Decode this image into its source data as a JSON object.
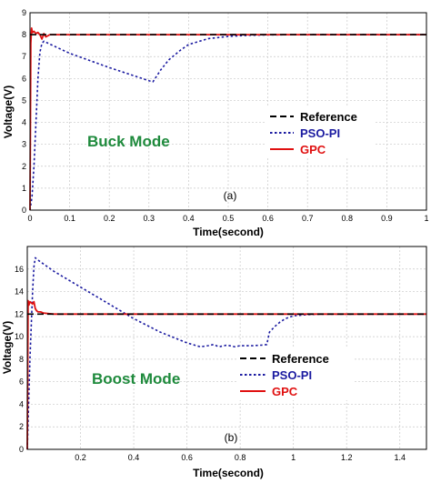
{
  "chart_data": [
    {
      "type": "line",
      "panel_label": "(a)",
      "annotation": "Buck Mode",
      "annotation_color": "#1e8a3c",
      "xlabel": "Time(second)",
      "ylabel": "Voltage(V)",
      "xlim": [
        0,
        1
      ],
      "ylim": [
        0,
        9
      ],
      "xticks": [
        0,
        0.1,
        0.2,
        0.3,
        0.4,
        0.5,
        0.6,
        0.7,
        0.8,
        0.9,
        1
      ],
      "xtick_labels": [
        "0",
        "0.1",
        "0.2",
        "0.3",
        "0.4",
        "0.5",
        "0.6",
        "0.7",
        "0.8",
        "0.9",
        "1"
      ],
      "yticks": [
        0,
        1,
        2,
        3,
        4,
        5,
        6,
        7,
        8,
        9
      ],
      "ytick_labels": [
        "0",
        "1",
        "2",
        "3",
        "4",
        "5",
        "6",
        "7",
        "8",
        "9"
      ],
      "grid": true,
      "legend_position": "right",
      "series": [
        {
          "name": "Reference",
          "color": "#000000",
          "style": "dashed",
          "x": [
            0,
            1
          ],
          "y": [
            8,
            8
          ]
        },
        {
          "name": "PSO-PI",
          "color": "#1a1aa0",
          "style": "dotted",
          "x": [
            0,
            0.005,
            0.01,
            0.015,
            0.02,
            0.025,
            0.03,
            0.035,
            0.05,
            0.1,
            0.2,
            0.3,
            0.31,
            0.33,
            0.35,
            0.38,
            0.4,
            0.45,
            0.5,
            0.55,
            0.6,
            0.7,
            0.8,
            1.0
          ],
          "y": [
            0,
            0.6,
            2.0,
            4.0,
            6.0,
            7.2,
            7.6,
            7.7,
            7.57,
            7.15,
            6.5,
            5.9,
            5.85,
            6.4,
            6.85,
            7.3,
            7.55,
            7.82,
            7.92,
            7.97,
            7.99,
            8.0,
            8.0,
            8.0
          ]
        },
        {
          "name": "GPC",
          "color": "#e01010",
          "style": "solid",
          "x": [
            0,
            0.002,
            0.004,
            0.006,
            0.01,
            0.015,
            0.02,
            0.025,
            0.03,
            0.035,
            0.04,
            0.05,
            0.06,
            0.1,
            0.3,
            0.6,
            1.0
          ],
          "y": [
            0,
            7.6,
            8.3,
            8.1,
            8.15,
            8.05,
            8.1,
            8.0,
            7.8,
            8.05,
            7.9,
            8.0,
            8.0,
            8.0,
            8.0,
            8.0,
            8.0
          ]
        }
      ]
    },
    {
      "type": "line",
      "panel_label": "(b)",
      "annotation": "Boost Mode",
      "annotation_color": "#1e8a3c",
      "xlabel": "Time(second)",
      "ylabel": "Voltage(V)",
      "xlim": [
        0,
        1.5
      ],
      "ylim": [
        0,
        18
      ],
      "xticks": [
        0.2,
        0.4,
        0.6,
        0.8,
        1,
        1.2,
        1.4
      ],
      "xtick_labels": [
        "0.2",
        "0.4",
        "0.6",
        "0.8",
        "1",
        "1.2",
        "1.4"
      ],
      "yticks": [
        0,
        2,
        4,
        6,
        8,
        10,
        12,
        14,
        16
      ],
      "ytick_labels": [
        "0",
        "2",
        "4",
        "6",
        "8",
        "10",
        "12",
        "14",
        "16"
      ],
      "grid": true,
      "legend_position": "bottom-right",
      "series": [
        {
          "name": "Reference",
          "color": "#000000",
          "style": "dashed",
          "x": [
            0,
            1.5
          ],
          "y": [
            12,
            12
          ]
        },
        {
          "name": "PSO-PI",
          "color": "#1a1aa0",
          "style": "dotted",
          "x": [
            0,
            0.01,
            0.02,
            0.025,
            0.03,
            0.04,
            0.1,
            0.2,
            0.3,
            0.4,
            0.5,
            0.6,
            0.65,
            0.68,
            0.7,
            0.72,
            0.75,
            0.78,
            0.8,
            0.85,
            0.88,
            0.9,
            0.91,
            0.93,
            0.95,
            0.97,
            1.0,
            1.05,
            1.1,
            1.5
          ],
          "y": [
            0,
            8,
            14,
            16.2,
            17.0,
            16.8,
            15.8,
            14.4,
            13.0,
            11.6,
            10.4,
            9.45,
            9.1,
            9.2,
            9.3,
            9.1,
            9.25,
            9.1,
            9.2,
            9.2,
            9.25,
            9.3,
            10.4,
            10.9,
            11.3,
            11.6,
            11.85,
            11.95,
            12.0,
            12.0
          ]
        },
        {
          "name": "GPC",
          "color": "#e01010",
          "style": "solid",
          "x": [
            0,
            0.003,
            0.006,
            0.01,
            0.02,
            0.025,
            0.03,
            0.035,
            0.04,
            0.05,
            0.06,
            0.08,
            0.1,
            0.5,
            1.5
          ],
          "y": [
            0,
            13.2,
            12.8,
            13.1,
            12.9,
            13.1,
            12.5,
            12.3,
            12.2,
            12.2,
            12.1,
            12.05,
            12.0,
            12.0,
            12.0
          ]
        }
      ]
    }
  ]
}
